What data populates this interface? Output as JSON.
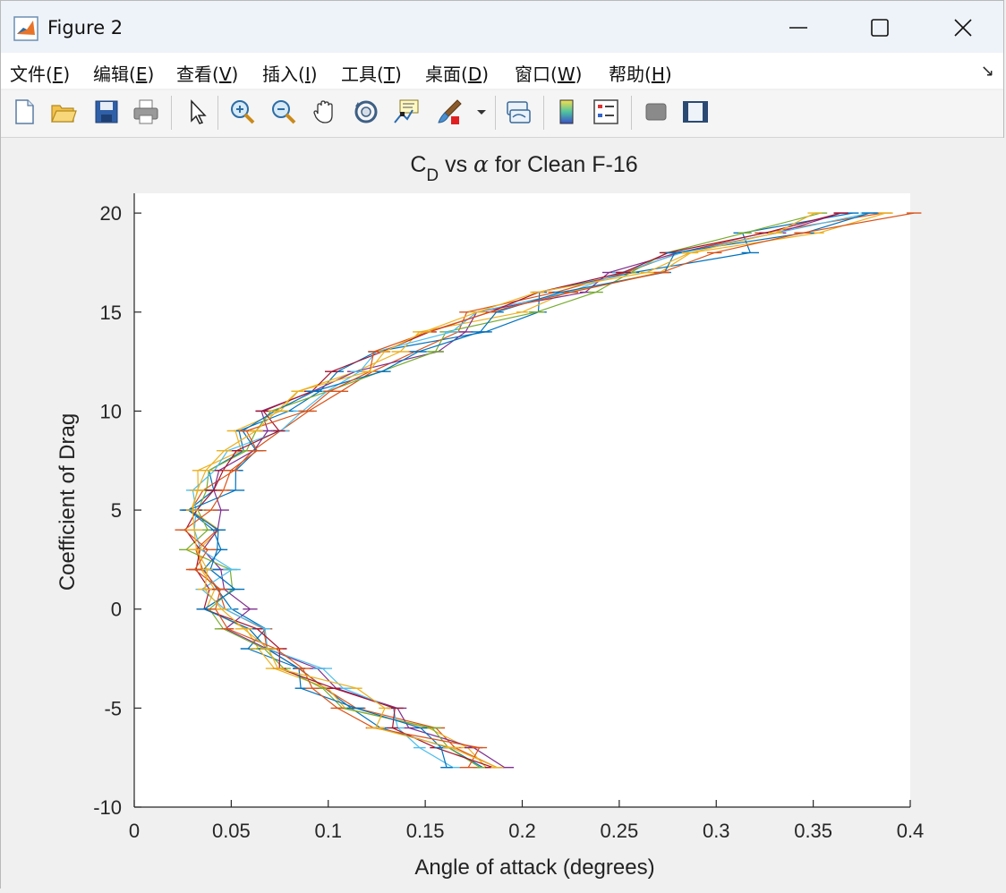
{
  "window": {
    "title": "Figure 2",
    "controls": {
      "minimize": "minimize",
      "maximize": "maximize",
      "close": "close"
    }
  },
  "menu": {
    "items": [
      {
        "text": "文件(",
        "key": "F",
        "tail": ")"
      },
      {
        "text": "编辑(",
        "key": "E",
        "tail": ")"
      },
      {
        "text": "查看(",
        "key": "V",
        "tail": ")"
      },
      {
        "text": "插入(",
        "key": "I",
        "tail": ")"
      },
      {
        "text": "工具(",
        "key": "T",
        "tail": ")"
      },
      {
        "text": "桌面(",
        "key": "D",
        "tail": ")"
      },
      {
        "text": "窗口(",
        "key": "W",
        "tail": ")"
      },
      {
        "text": "帮助(",
        "key": "H",
        "tail": ")"
      }
    ],
    "dock_arrow": "↘"
  },
  "toolbar": {
    "icons": [
      "new-file-icon",
      "open-folder-icon",
      "save-icon",
      "print-icon",
      "pointer-icon",
      "zoom-in-icon",
      "zoom-out-icon",
      "pan-hand-icon",
      "rotate-3d-icon",
      "data-cursor-icon",
      "brush-icon",
      "link-plot-icon",
      "colorbar-icon",
      "legend-icon",
      "hide-plot-tools-icon",
      "show-plot-tools-icon"
    ]
  },
  "chart_data": {
    "type": "line",
    "title_main": "C",
    "title_sub": "D",
    "title_rest": " vs ",
    "title_alpha": "α",
    "title_end": " for Clean F-16",
    "xlabel": "Angle of attack (degrees)",
    "ylabel": "Coefficient of Drag",
    "xlim": [
      0,
      0.4
    ],
    "ylim": [
      -10,
      21
    ],
    "xticks": [
      0,
      0.05,
      0.1,
      0.15,
      0.2,
      0.25,
      0.3,
      0.35,
      0.4
    ],
    "xtick_labels": [
      "0",
      "0.05",
      "0.1",
      "0.15",
      "0.2",
      "0.25",
      "0.3",
      "0.35",
      "0.4"
    ],
    "yticks": [
      -10,
      -5,
      0,
      5,
      10,
      15,
      20
    ],
    "ytick_labels": [
      "-10",
      "-5",
      "0",
      "5",
      "10",
      "15",
      "20"
    ],
    "series_colors": [
      "#0072BD",
      "#D95319",
      "#EDB120",
      "#7E2F8E",
      "#77AC30",
      "#4DBEEE",
      "#A2142F"
    ],
    "base_curve": {
      "alpha": [
        -8,
        -7,
        -6,
        -5,
        -4,
        -3,
        -2,
        -1,
        0,
        1,
        2,
        3,
        4,
        5,
        6,
        7,
        8,
        9,
        10,
        11,
        12,
        13,
        14,
        15,
        16,
        17,
        18,
        19,
        20
      ],
      "cd": [
        0.18,
        0.16,
        0.14,
        0.12,
        0.1,
        0.085,
        0.07,
        0.058,
        0.048,
        0.045,
        0.041,
        0.038,
        0.037,
        0.038,
        0.041,
        0.045,
        0.052,
        0.063,
        0.078,
        0.096,
        0.115,
        0.14,
        0.165,
        0.19,
        0.225,
        0.26,
        0.295,
        0.33,
        0.375
      ]
    }
  }
}
